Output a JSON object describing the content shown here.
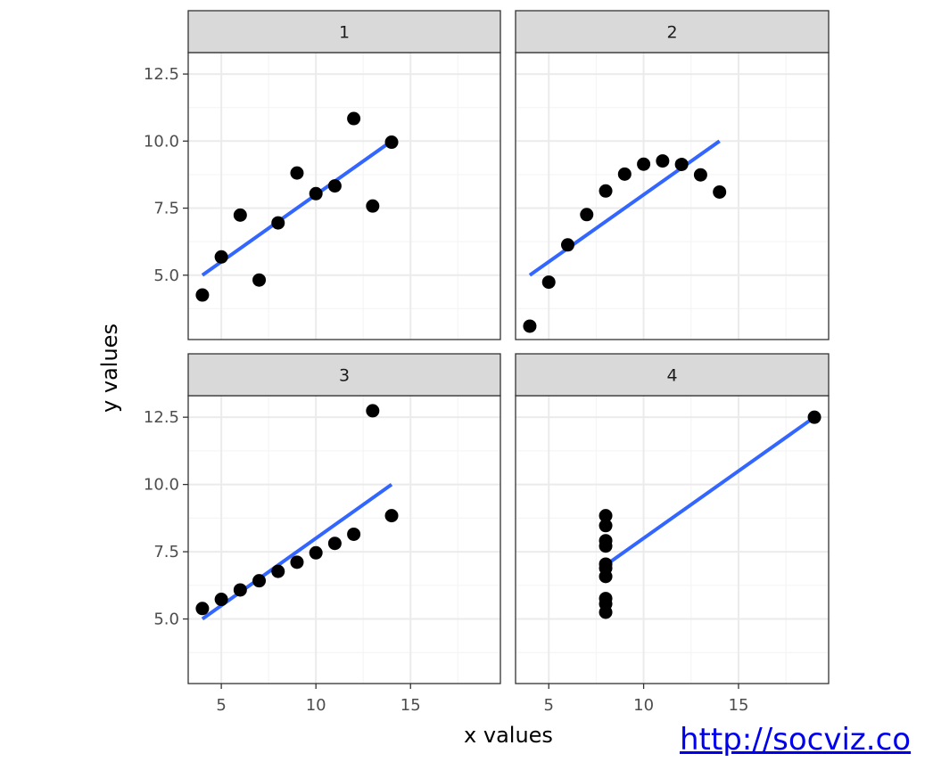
{
  "source_link": "http://socviz.co",
  "colors": {
    "point": "#000000",
    "fit_line": "#3366ff",
    "strip_bg": "#d9d9d9",
    "panel_border": "#333333",
    "grid_major": "#ebebeb",
    "grid_minor": "#f5f5f5"
  },
  "chart_data": {
    "type": "scatter",
    "layout": "facet_wrap 2x2",
    "xlabel": "x values",
    "ylabel": "y values",
    "xlim": [
      3.25,
      19.75
    ],
    "ylim": [
      2.6,
      13.3
    ],
    "x_breaks": [
      5,
      10,
      15
    ],
    "x_tick_labels": [
      "5",
      "10",
      "15"
    ],
    "y_breaks": [
      5.0,
      7.5,
      10.0,
      12.5
    ],
    "y_tick_labels": [
      "5.0",
      "7.5",
      "10.0",
      "12.5"
    ],
    "grid": true,
    "panels": [
      {
        "label": "1",
        "points": [
          [
            10,
            8.04
          ],
          [
            8,
            6.95
          ],
          [
            13,
            7.58
          ],
          [
            9,
            8.81
          ],
          [
            11,
            8.33
          ],
          [
            14,
            9.96
          ],
          [
            6,
            7.24
          ],
          [
            4,
            4.26
          ],
          [
            12,
            10.84
          ],
          [
            7,
            4.82
          ],
          [
            5,
            5.68
          ]
        ],
        "fit": [
          [
            4,
            5.0
          ],
          [
            14,
            10.0
          ]
        ]
      },
      {
        "label": "2",
        "points": [
          [
            10,
            9.14
          ],
          [
            8,
            8.14
          ],
          [
            13,
            8.74
          ],
          [
            9,
            8.77
          ],
          [
            11,
            9.26
          ],
          [
            14,
            8.1
          ],
          [
            6,
            6.13
          ],
          [
            4,
            3.1
          ],
          [
            12,
            9.13
          ],
          [
            7,
            7.26
          ],
          [
            5,
            4.74
          ]
        ],
        "fit": [
          [
            4,
            5.0
          ],
          [
            14,
            10.0
          ]
        ]
      },
      {
        "label": "3",
        "points": [
          [
            10,
            7.46
          ],
          [
            8,
            6.77
          ],
          [
            13,
            12.74
          ],
          [
            9,
            7.11
          ],
          [
            11,
            7.81
          ],
          [
            14,
            8.84
          ],
          [
            6,
            6.08
          ],
          [
            4,
            5.39
          ],
          [
            12,
            8.15
          ],
          [
            7,
            6.42
          ],
          [
            5,
            5.73
          ]
        ],
        "fit": [
          [
            4,
            5.0
          ],
          [
            14,
            10.0
          ]
        ]
      },
      {
        "label": "4",
        "points": [
          [
            8,
            6.58
          ],
          [
            8,
            5.76
          ],
          [
            8,
            7.71
          ],
          [
            8,
            8.84
          ],
          [
            8,
            8.47
          ],
          [
            8,
            7.04
          ],
          [
            8,
            5.25
          ],
          [
            19,
            12.5
          ],
          [
            8,
            5.56
          ],
          [
            8,
            7.91
          ],
          [
            8,
            6.89
          ]
        ],
        "fit": [
          [
            8,
            7.0
          ],
          [
            19,
            12.5
          ]
        ]
      }
    ]
  }
}
